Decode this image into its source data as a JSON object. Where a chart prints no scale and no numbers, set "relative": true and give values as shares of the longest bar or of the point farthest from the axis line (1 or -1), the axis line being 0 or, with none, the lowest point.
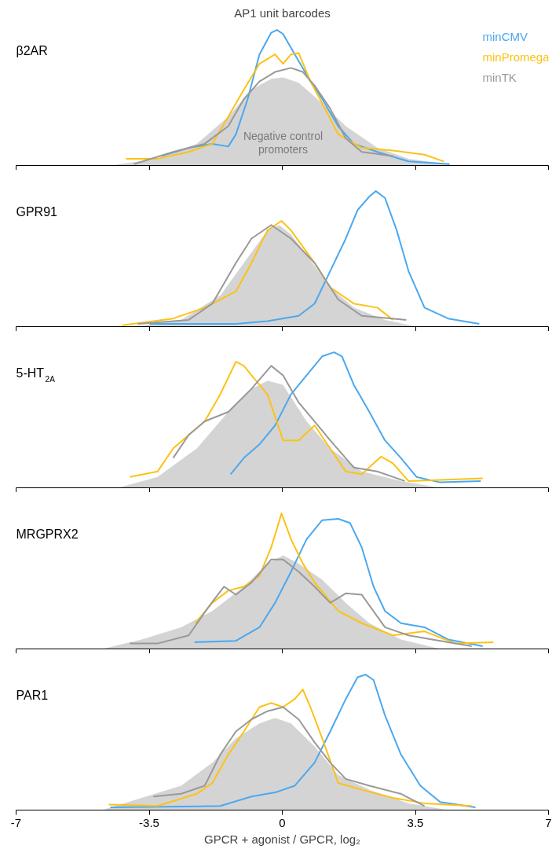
{
  "chart_data": [
    {
      "type": "line",
      "title": "AP1 unit barcodes",
      "subtitle": "β2AR",
      "relative": true,
      "xlim": [
        -7,
        7
      ],
      "xticks": [
        -7,
        -3.5,
        0,
        3.5,
        7
      ],
      "tick_labels": false,
      "legend": "top right",
      "series": [
        {
          "name": "Negative control promoters",
          "type": "area",
          "color": "#d4d4d4",
          "x": [
            -4.52,
            -3.28,
            -2.25,
            -1.42,
            -0.81,
            -0.29,
            0.02,
            0.43,
            1.05,
            1.67,
            2.5,
            3.32,
            4.56
          ],
          "values": [
            0,
            0.05,
            0.16,
            0.36,
            0.56,
            0.64,
            0.65,
            0.61,
            0.46,
            0.29,
            0.13,
            0.05,
            0
          ]
        },
        {
          "name": "minCMV",
          "color": "#4aa8f0",
          "x": [
            -3.18,
            -2.46,
            -1.84,
            -1.42,
            -1.22,
            -0.91,
            -0.6,
            -0.29,
            -0.14,
            0.02,
            0.33,
            0.74,
            1.05,
            1.47,
            1.88,
            2.5,
            3.32,
            4.4
          ],
          "values": [
            0.07,
            0.13,
            0.16,
            0.14,
            0.23,
            0.49,
            0.82,
            0.98,
            1,
            0.97,
            0.82,
            0.62,
            0.49,
            0.29,
            0.16,
            0.1,
            0.03,
            0.01
          ]
        },
        {
          "name": "minPromega",
          "color": "#fcc214",
          "x": [
            -4.11,
            -3.28,
            -2.46,
            -1.84,
            -1.42,
            -1.01,
            -0.6,
            -0.19,
            0.02,
            0.23,
            0.43,
            0.74,
            1.05,
            1.47,
            2.09,
            2.91,
            3.74,
            4.25
          ],
          "values": [
            0.05,
            0.05,
            0.1,
            0.16,
            0.36,
            0.56,
            0.75,
            0.82,
            0.75,
            0.82,
            0.83,
            0.62,
            0.46,
            0.23,
            0.13,
            0.11,
            0.08,
            0.03
          ]
        },
        {
          "name": "minTK",
          "color": "#999999",
          "x": [
            -3.9,
            -2.87,
            -2.04,
            -1.42,
            -1.01,
            -0.6,
            -0.19,
            0.23,
            0.54,
            0.85,
            1.26,
            1.67,
            2.09,
            2.91
          ],
          "values": [
            0.01,
            0.1,
            0.16,
            0.29,
            0.49,
            0.62,
            0.69,
            0.72,
            0.69,
            0.59,
            0.42,
            0.2,
            0.1,
            0.07
          ]
        }
      ]
    },
    {
      "type": "line",
      "subtitle": "GPR91",
      "relative": true,
      "xlim": [
        -7,
        7
      ],
      "xticks": [
        -7,
        -3.5,
        0,
        3.5,
        7
      ],
      "tick_labels": false,
      "series": [
        {
          "type": "area",
          "color": "#d4d4d4",
          "x": [
            -3.9,
            -2.66,
            -1.63,
            -1.01,
            -0.39,
            -0.08,
            0.23,
            0.64,
            1.26,
            1.88,
            2.7,
            3.53
          ],
          "values": [
            0,
            0.05,
            0.23,
            0.47,
            0.71,
            0.75,
            0.68,
            0.53,
            0.29,
            0.14,
            0.05,
            0
          ]
        },
        {
          "color": "#4aa8f0",
          "x": [
            -3.49,
            -1.22,
            -0.39,
            0.43,
            0.85,
            1.26,
            1.67,
            1.98,
            2.29,
            2.46,
            2.7,
            3.01,
            3.32,
            3.74,
            4.36,
            5.18
          ],
          "values": [
            0.02,
            0.02,
            0.04,
            0.08,
            0.17,
            0.41,
            0.65,
            0.86,
            0.96,
            1,
            0.95,
            0.71,
            0.41,
            0.14,
            0.06,
            0.02
          ]
        },
        {
          "color": "#fcc214",
          "x": [
            -4.21,
            -2.87,
            -2.04,
            -1.63,
            -1.22,
            -0.81,
            -0.39,
            -0.02,
            0.23,
            0.54,
            0.85,
            1.26,
            1.88,
            2.5,
            2.91
          ],
          "values": [
            0.01,
            0.06,
            0.14,
            0.2,
            0.26,
            0.47,
            0.71,
            0.78,
            0.71,
            0.59,
            0.47,
            0.29,
            0.17,
            0.14,
            0.05
          ]
        },
        {
          "color": "#999999",
          "x": [
            -3.8,
            -2.46,
            -1.84,
            -1.22,
            -0.81,
            -0.29,
            0.23,
            0.85,
            1.47,
            2.09,
            3.26
          ],
          "values": [
            0.02,
            0.05,
            0.17,
            0.47,
            0.65,
            0.75,
            0.65,
            0.47,
            0.2,
            0.08,
            0.05
          ]
        }
      ]
    },
    {
      "type": "line",
      "subtitle": "5-HT$_{2A}$",
      "relative": true,
      "xlim": [
        -7,
        7
      ],
      "xticks": [
        -7,
        -3.5,
        0,
        3.5,
        7
      ],
      "tick_labels": false,
      "series": [
        {
          "type": "area",
          "color": "#d4d4d4",
          "x": [
            -4.32,
            -3.28,
            -2.25,
            -1.42,
            -0.81,
            -0.39,
            0.02,
            0.64,
            1.26,
            2.09,
            3.12,
            4.15
          ],
          "values": [
            0,
            0.08,
            0.29,
            0.56,
            0.73,
            0.79,
            0.76,
            0.49,
            0.29,
            0.12,
            0.05,
            0
          ]
        },
        {
          "color": "#4aa8f0",
          "x": [
            -1.36,
            -1.01,
            -0.6,
            -0.19,
            0.23,
            0.64,
            1.05,
            1.36,
            1.57,
            1.88,
            2.29,
            2.7,
            3.12,
            3.53,
            4.15,
            5.22
          ],
          "values": [
            0.1,
            0.22,
            0.32,
            0.46,
            0.69,
            0.83,
            0.97,
            1,
            0.97,
            0.76,
            0.56,
            0.35,
            0.22,
            0.08,
            0.04,
            0.05
          ]
        },
        {
          "color": "#fcc214",
          "x": [
            -4.01,
            -3.28,
            -2.87,
            -2.46,
            -2.04,
            -1.63,
            -1.22,
            -1.01,
            -0.81,
            -0.39,
            0.02,
            0.43,
            0.85,
            1.26,
            1.67,
            2.09,
            2.6,
            2.91,
            3.32,
            5.27
          ],
          "values": [
            0.08,
            0.12,
            0.29,
            0.39,
            0.49,
            0.69,
            0.93,
            0.9,
            0.83,
            0.69,
            0.35,
            0.35,
            0.46,
            0.29,
            0.12,
            0.1,
            0.23,
            0.18,
            0.05,
            0.07
          ]
        },
        {
          "color": "#999999",
          "x": [
            -2.87,
            -2.46,
            -2.04,
            -1.42,
            -0.81,
            -0.29,
            0.02,
            0.43,
            0.85,
            1.26,
            1.88,
            2.5,
            3.22
          ],
          "values": [
            0.22,
            0.39,
            0.49,
            0.56,
            0.73,
            0.9,
            0.83,
            0.63,
            0.49,
            0.35,
            0.15,
            0.12,
            0.05
          ]
        }
      ]
    },
    {
      "type": "line",
      "subtitle": "MRGPRX2",
      "relative": true,
      "xlim": [
        -7,
        7
      ],
      "xticks": [
        -7,
        -3.5,
        0,
        3.5,
        7
      ],
      "tick_labels": false,
      "series": [
        {
          "type": "area",
          "color": "#d4d4d4",
          "x": [
            -4.73,
            -3.7,
            -2.66,
            -1.84,
            -1.01,
            -0.39,
            0.02,
            0.43,
            1.05,
            1.67,
            2.29,
            3.12,
            4.15
          ],
          "values": [
            0,
            0.07,
            0.16,
            0.28,
            0.46,
            0.63,
            0.69,
            0.63,
            0.51,
            0.34,
            0.19,
            0.07,
            0
          ]
        },
        {
          "color": "#4aa8f0",
          "x": [
            -2.31,
            -1.22,
            -0.6,
            -0.19,
            0.23,
            0.64,
            1.05,
            1.47,
            1.78,
            2.09,
            2.4,
            2.7,
            3.12,
            3.74,
            4.36,
            5.27
          ],
          "values": [
            0.05,
            0.06,
            0.16,
            0.34,
            0.57,
            0.81,
            0.95,
            0.96,
            0.93,
            0.75,
            0.46,
            0.28,
            0.19,
            0.16,
            0.07,
            0.02
          ]
        },
        {
          "color": "#fcc214",
          "x": [
            -2.29,
            -1.84,
            -1.42,
            -1.01,
            -0.6,
            -0.29,
            -0.02,
            0.23,
            0.54,
            0.85,
            1.47,
            2.09,
            2.91,
            3.74,
            4.56,
            5.55
          ],
          "values": [
            0.19,
            0.34,
            0.43,
            0.46,
            0.54,
            0.75,
            1,
            0.81,
            0.63,
            0.49,
            0.28,
            0.19,
            0.1,
            0.13,
            0.04,
            0.05
          ]
        },
        {
          "color": "#999999",
          "x": [
            -4.01,
            -3.28,
            -2.46,
            -1.94,
            -1.53,
            -1.22,
            -0.81,
            -0.29,
            0.02,
            0.43,
            0.85,
            1.26,
            1.67,
            2.09,
            2.7,
            3.32,
            3.94,
            4.98
          ],
          "values": [
            0.04,
            0.04,
            0.1,
            0.31,
            0.46,
            0.4,
            0.49,
            0.66,
            0.66,
            0.57,
            0.46,
            0.34,
            0.41,
            0.4,
            0.16,
            0.1,
            0.07,
            0.02
          ]
        }
      ]
    },
    {
      "type": "line",
      "subtitle": "PAR1",
      "xlabel": "GPCR + agonist / GPCR, log₂",
      "relative": true,
      "xlim": [
        -7,
        7
      ],
      "xticks": [
        -7,
        -3.5,
        0,
        3.5,
        7
      ],
      "series": [
        {
          "type": "area",
          "color": "#d4d4d4",
          "x": [
            -4.73,
            -3.7,
            -2.66,
            -1.84,
            -1.22,
            -0.6,
            -0.19,
            0.23,
            0.85,
            1.47,
            2.29,
            3.32,
            4.36
          ],
          "values": [
            0,
            0.09,
            0.18,
            0.35,
            0.53,
            0.64,
            0.68,
            0.64,
            0.47,
            0.26,
            0.15,
            0.05,
            0
          ]
        },
        {
          "color": "#4aa8f0",
          "x": [
            -4.52,
            -1.63,
            -0.81,
            -0.19,
            0.33,
            0.85,
            1.26,
            1.67,
            1.98,
            2.19,
            2.4,
            2.7,
            3.12,
            3.63,
            4.15,
            5.08
          ],
          "values": [
            0.02,
            0.03,
            0.1,
            0.13,
            0.18,
            0.35,
            0.58,
            0.82,
            0.98,
            1,
            0.96,
            0.7,
            0.41,
            0.18,
            0.06,
            0.02
          ]
        },
        {
          "color": "#fcc214",
          "x": [
            -4.56,
            -3.28,
            -2.25,
            -1.84,
            -1.42,
            -1.01,
            -0.6,
            -0.29,
            0.02,
            0.33,
            0.54,
            0.74,
            1.05,
            1.47,
            2.09,
            2.91,
            3.74,
            4.98
          ],
          "values": [
            0.04,
            0.03,
            0.12,
            0.2,
            0.41,
            0.58,
            0.76,
            0.79,
            0.76,
            0.82,
            0.89,
            0.76,
            0.53,
            0.2,
            0.15,
            0.09,
            0.05,
            0.03
          ]
        },
        {
          "color": "#999999",
          "x": [
            -3.39,
            -2.66,
            -2.04,
            -1.63,
            -1.22,
            -0.81,
            -0.39,
            0.02,
            0.43,
            0.85,
            1.26,
            1.67,
            2.29,
            3.12,
            3.74
          ],
          "values": [
            0.1,
            0.12,
            0.18,
            0.41,
            0.58,
            0.67,
            0.73,
            0.76,
            0.67,
            0.5,
            0.35,
            0.23,
            0.18,
            0.12,
            0.03
          ]
        }
      ]
    }
  ]
}
